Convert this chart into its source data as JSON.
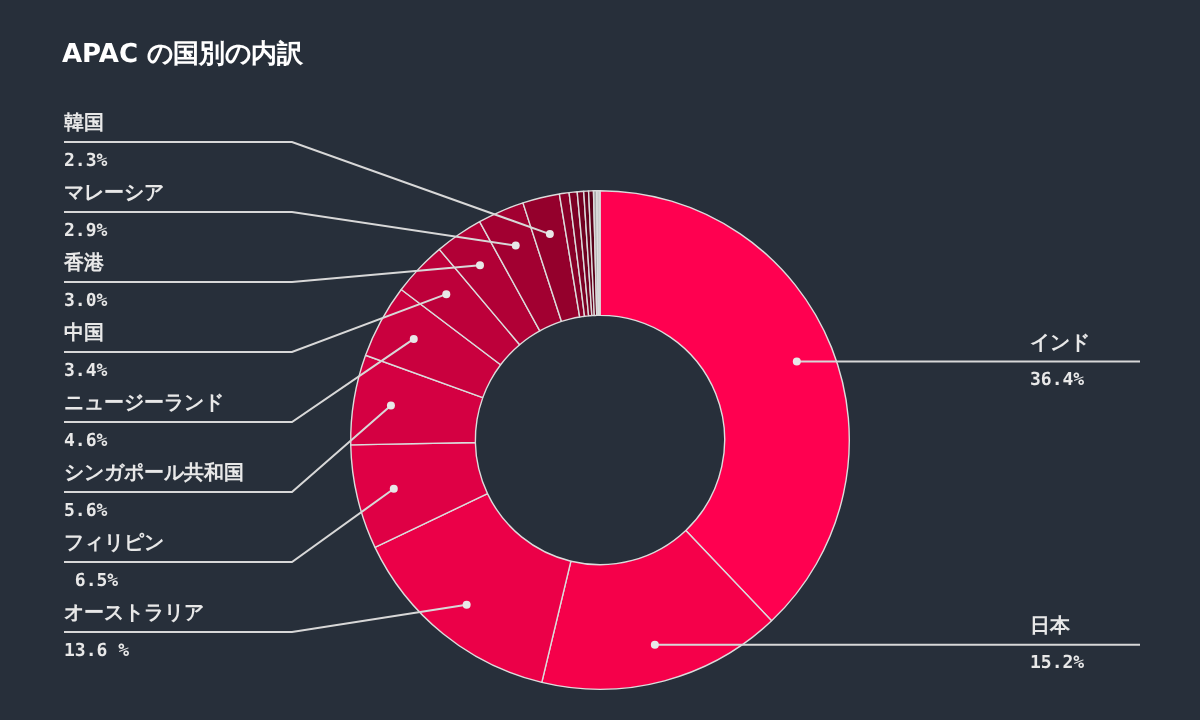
{
  "chart_data": {
    "type": "donut",
    "title": "APAC の国別の内訳",
    "categories": [
      "インド",
      "日本",
      "オーストラリア",
      "フィリピン",
      "シンガポール共和国",
      "ニュージーランド",
      "中国",
      "香港",
      "マレーシア",
      "韓国",
      null,
      null,
      null,
      null,
      null,
      null,
      null
    ],
    "values": [
      36.4,
      15.2,
      13.6,
      6.5,
      5.6,
      4.6,
      3.4,
      3.0,
      2.9,
      2.3,
      0.6,
      0.5,
      0.4,
      0.3,
      0.3,
      0.2,
      0.2
    ],
    "value_labels": [
      "36.4%",
      "15.2%",
      "13.6 %",
      " 6.5%",
      "5.6%",
      "4.6%",
      "3.4%",
      "3.0%",
      "2.9%",
      "2.3%",
      null,
      null,
      null,
      null,
      null,
      null,
      null
    ],
    "colors": [
      "#ff0050",
      "#f5004a",
      "#eb0048",
      "#df0045",
      "#d40042",
      "#c9003e",
      "#bd003a",
      "#b10036",
      "#a20031",
      "#94002c",
      "#880028",
      "#7c0024",
      "#700020",
      "#64001c",
      "#580018",
      "#aaaaaa",
      "#cccccc"
    ],
    "legend": false
  }
}
